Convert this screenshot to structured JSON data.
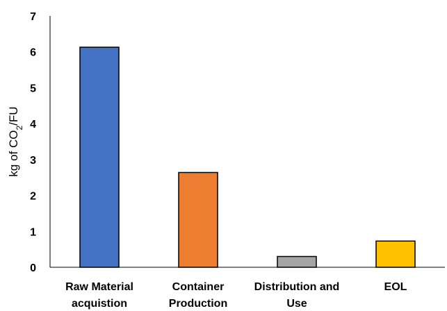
{
  "chart_data": {
    "type": "bar",
    "categories": [
      [
        "Raw Material",
        "acquistion"
      ],
      [
        "Container",
        "Production"
      ],
      [
        "Distribution and",
        "Use"
      ],
      [
        "EOL"
      ]
    ],
    "values": [
      6.13,
      2.64,
      0.3,
      0.73
    ],
    "colors": [
      "#4472C4",
      "#ED7D31",
      "#A5A5A5",
      "#FFC000"
    ],
    "title": "",
    "xlabel": "",
    "ylabel": {
      "prefix": "kg of CO",
      "subscript": "2",
      "suffix": "/FU"
    },
    "ylim": [
      0,
      7
    ],
    "yticks": [
      "0",
      "1",
      "2",
      "3",
      "4",
      "5",
      "6",
      "7"
    ],
    "grid": false,
    "legend": "none"
  }
}
